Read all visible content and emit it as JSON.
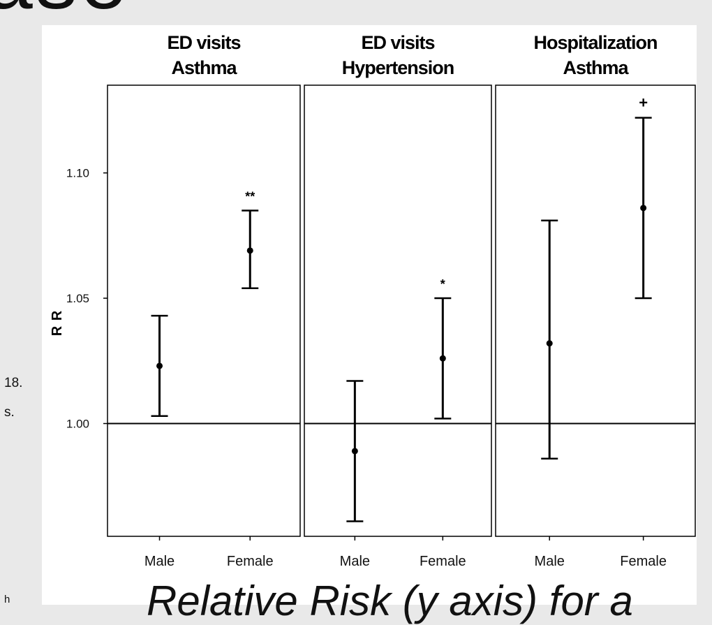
{
  "slide": {
    "heading_fragment": "ase",
    "side_text": [
      "18.",
      "s.",
      "h"
    ],
    "caption": "Relative Risk (y axis) for a"
  },
  "chart_data": {
    "type": "errorbar",
    "ylabel": "R R",
    "ylim": [
      0.955,
      1.135
    ],
    "yticks": [
      1.0,
      1.05,
      1.1
    ],
    "ytick_labels": [
      "1.00",
      "1.05",
      "1.10"
    ],
    "reference_line": 1.0,
    "categories": [
      "Male",
      "Female"
    ],
    "panels": [
      {
        "title": [
          "ED visits",
          "Asthma"
        ],
        "points": [
          {
            "group": "Male",
            "estimate": 1.023,
            "lower": 1.003,
            "upper": 1.043,
            "mark": ""
          },
          {
            "group": "Female",
            "estimate": 1.069,
            "lower": 1.054,
            "upper": 1.085,
            "mark": "**"
          }
        ]
      },
      {
        "title": [
          "ED visits",
          "Hypertension"
        ],
        "points": [
          {
            "group": "Male",
            "estimate": 0.989,
            "lower": 0.961,
            "upper": 1.017,
            "mark": ""
          },
          {
            "group": "Female",
            "estimate": 1.026,
            "lower": 1.002,
            "upper": 1.05,
            "mark": "*"
          }
        ]
      },
      {
        "title": [
          "Hospitalization",
          "Asthma"
        ],
        "points": [
          {
            "group": "Male",
            "estimate": 1.032,
            "lower": 0.986,
            "upper": 1.081,
            "mark": ""
          },
          {
            "group": "Female",
            "estimate": 1.086,
            "lower": 1.05,
            "upper": 1.122,
            "mark": "+"
          }
        ]
      }
    ],
    "colors": {
      "mark": "#000000",
      "axis": "#000000"
    }
  }
}
